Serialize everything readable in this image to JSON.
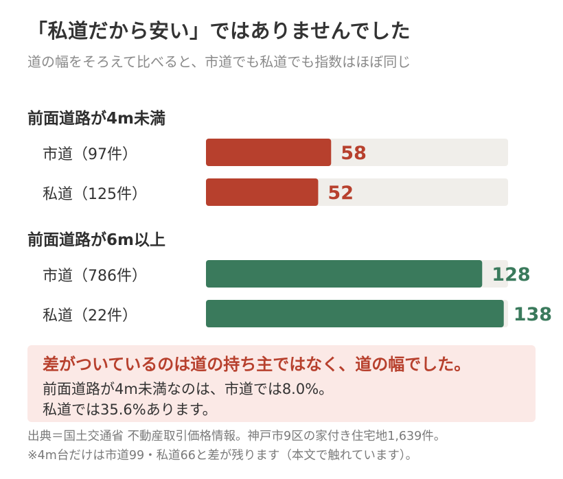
{
  "title": "「私道だから安い」ではありませんでした",
  "subtitle": "道の幅をそろえて比べると、市道でも私道でも指数はほぼ同じ",
  "colors": {
    "under4m": "#b7402d",
    "over6m": "#3a7a5c",
    "track": "#f0eeea",
    "note_bg": "#fbe9e6"
  },
  "chart_data": {
    "type": "bar",
    "orientation": "horizontal",
    "scale_max": 140,
    "groups": [
      {
        "name": "前面道路が4m未満",
        "color": "#b7402d",
        "bars": [
          {
            "label": "市道（97件）",
            "value": 58
          },
          {
            "label": "私道（125件）",
            "value": 52
          }
        ]
      },
      {
        "name": "前面道路が6m以上",
        "color": "#3a7a5c",
        "bars": [
          {
            "label": "市道（786件）",
            "value": 128
          },
          {
            "label": "私道（22件）",
            "value": 138
          }
        ]
      }
    ]
  },
  "note": {
    "headline": "差がついているのは道の持ち主ではなく、道の幅でした。",
    "line1": "前面道路が4m未満なのは、市道では8.0%。",
    "line2": "私道では35.6%あります。"
  },
  "footer": {
    "source": "出典＝国土交通省 不動産取引価格情報。神戸市9区の家付き住宅地1,639件。",
    "remark": "※4m台だけは市道99・私道66と差が残ります（本文で触れています）。"
  }
}
